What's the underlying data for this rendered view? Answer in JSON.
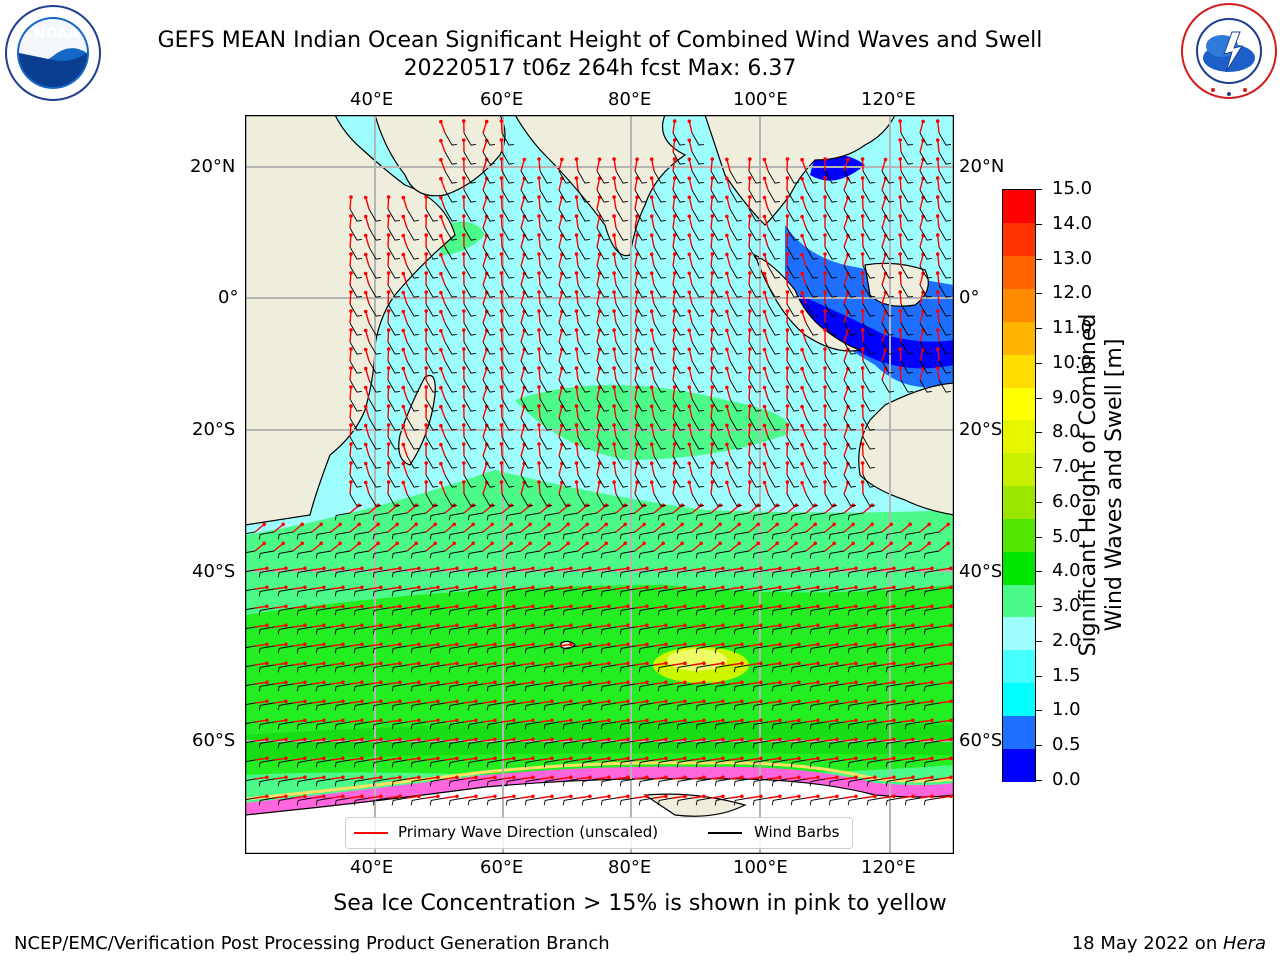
{
  "header": {
    "title_line1": "GEFS MEAN Indian Ocean Significant Height of Combined Wind Waves and Swell",
    "title_line2": "20220517 t06z 264h fcst   Max: 6.37",
    "left_logo": "NOAA",
    "right_logo": "NATIONAL WEATHER SERVICE"
  },
  "map": {
    "lon_labels": [
      "40°E",
      "60°E",
      "80°E",
      "100°E",
      "120°E"
    ],
    "lat_labels": [
      "20°N",
      "0°",
      "20°S",
      "40°S",
      "60°S"
    ],
    "legend": {
      "wave_label": "Primary Wave Direction (unscaled)",
      "wave_color": "#ff0000",
      "barb_label": "Wind Barbs",
      "barb_color": "#000000"
    },
    "colors": {
      "land": "#efeddc",
      "ocean_low": "#9efefe",
      "ocean_mid": "#4cfa8a",
      "ocean_high": "#22ee22",
      "peak": "#ccf500",
      "ice": "#ffffff",
      "coastal_blue": "#0000ff"
    }
  },
  "colorbar": {
    "label_line1": "Significant Height of Combined",
    "label_line2": "Wind Waves and Swell [m]",
    "ticks": [
      "15.0",
      "14.0",
      "13.0",
      "12.0",
      "11.0",
      "10.0",
      "9.0",
      "8.0",
      "7.0",
      "6.0",
      "5.0",
      "4.0",
      "3.0",
      "2.0",
      "1.5",
      "1.0",
      "0.5",
      "0.0"
    ],
    "colors_bottom_to_top": [
      "#0000ff",
      "#1e6eff",
      "#00ffff",
      "#46ffff",
      "#9efefe",
      "#4cfa8a",
      "#00e600",
      "#55e600",
      "#9be600",
      "#c8f000",
      "#e6f500",
      "#ffff00",
      "#ffdd00",
      "#ffb400",
      "#ff8c00",
      "#ff6400",
      "#ff3200",
      "#ff0000"
    ]
  },
  "footer": {
    "ice_note": "Sea Ice Concentration > 15% is shown in pink to yellow",
    "branch": "NCEP/EMC/Verification Post Processing Product Generation Branch",
    "date": "18 May 2022 on ",
    "machine": "Hera"
  }
}
